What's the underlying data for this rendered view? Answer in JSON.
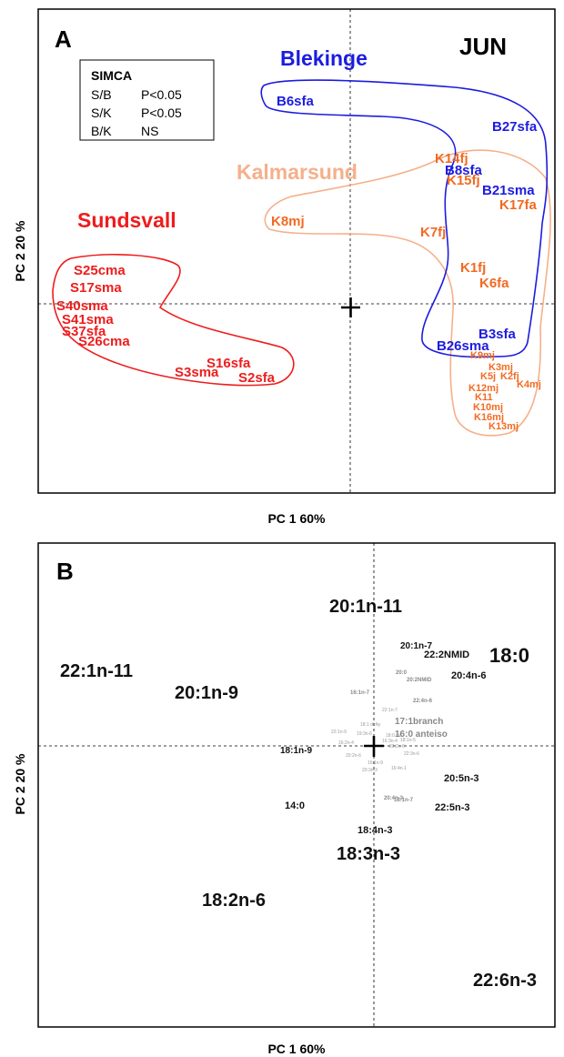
{
  "chart_data": [
    {
      "type": "scatter",
      "panel_letter": "A",
      "xlabel": "PC 1 60%",
      "ylabel": "PC 2  20 %",
      "corner_label": "JUN",
      "legend": {
        "title": "SIMCA",
        "rows": [
          {
            "pair": "S/B",
            "result": "P<0.05"
          },
          {
            "pair": "S/K",
            "result": "P<0.05"
          },
          {
            "pair": "B/K",
            "result": "NS"
          }
        ]
      },
      "group_labels": [
        {
          "text": "Blekinge",
          "color": "#1c1ce0"
        },
        {
          "text": "Kalmarsund",
          "color": "#f5b08a"
        },
        {
          "text": "Sundsvall",
          "color": "#ee1c1c"
        }
      ],
      "colors": {
        "sundsvall": "#ee1c1c",
        "blekinge": "#1c1ce0",
        "kalmarsund": "#f26a22",
        "kalmarsund_hull": "#f5b08a"
      },
      "points": [
        {
          "label": "B6sfa",
          "group": "blekinge"
        },
        {
          "label": "B27sfa",
          "group": "blekinge"
        },
        {
          "label": "K14fj",
          "group": "kalmarsund"
        },
        {
          "label": "B8sfa",
          "group": "blekinge"
        },
        {
          "label": "K15fj",
          "group": "kalmarsund"
        },
        {
          "label": "B21sma",
          "group": "blekinge"
        },
        {
          "label": "K17fa",
          "group": "kalmarsund"
        },
        {
          "label": "K8mj",
          "group": "kalmarsund"
        },
        {
          "label": "K7fj",
          "group": "kalmarsund"
        },
        {
          "label": "K1fj",
          "group": "kalmarsund"
        },
        {
          "label": "K6fa",
          "group": "kalmarsund"
        },
        {
          "label": "B3sfa",
          "group": "blekinge"
        },
        {
          "label": "B26sma",
          "group": "blekinge"
        },
        {
          "label": "K9mj",
          "group": "kalmarsund"
        },
        {
          "label": "K3mj",
          "group": "kalmarsund"
        },
        {
          "label": "K5j",
          "group": "kalmarsund"
        },
        {
          "label": "K2fj",
          "group": "kalmarsund"
        },
        {
          "label": "K4mj",
          "group": "kalmarsund"
        },
        {
          "label": "K12mj",
          "group": "kalmarsund"
        },
        {
          "label": "K11",
          "group": "kalmarsund"
        },
        {
          "label": "K10mj",
          "group": "kalmarsund"
        },
        {
          "label": "K16mj",
          "group": "kalmarsund"
        },
        {
          "label": "K13mj",
          "group": "kalmarsund"
        },
        {
          "label": "S25cma",
          "group": "sundsvall"
        },
        {
          "label": "S17sma",
          "group": "sundsvall"
        },
        {
          "label": "S40sma",
          "group": "sundsvall"
        },
        {
          "label": "S41sma",
          "group": "sundsvall"
        },
        {
          "label": "S37sfa",
          "group": "sundsvall"
        },
        {
          "label": "S26cma",
          "group": "sundsvall"
        },
        {
          "label": "S16sfa",
          "group": "sundsvall"
        },
        {
          "label": "S3sma",
          "group": "sundsvall"
        },
        {
          "label": "S2sfa",
          "group": "sundsvall"
        }
      ]
    },
    {
      "type": "scatter",
      "panel_letter": "B",
      "xlabel": "PC 1 60%",
      "ylabel": "PC 2  20 %",
      "colors": {
        "major": "#111111",
        "minor": "#888888"
      },
      "labels": [
        "20:1n-11",
        "20:1n-7",
        "22:2NMID",
        "18:0",
        "22:1n-11",
        "20:0",
        "20:2NMID",
        "20:4n-6",
        "16:1n-7",
        "22:4n-6",
        "20:1n-9",
        "17:1branch",
        "16:0 anteiso",
        "18:1n-9",
        "20:5n-3",
        "14:0",
        "20:4n-3",
        "18:1n-7",
        "22:5n-3",
        "18:4n-3",
        "18:3n-3",
        "18:2n-6",
        "22:6n-3"
      ]
    }
  ]
}
